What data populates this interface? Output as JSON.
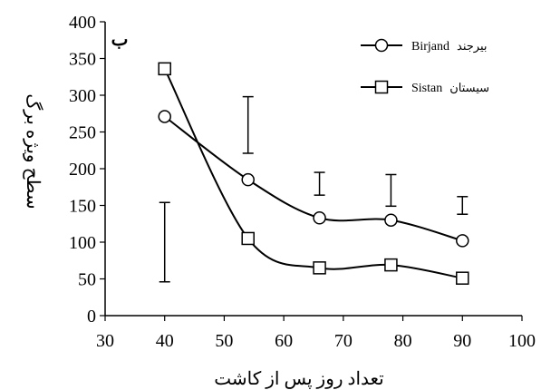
{
  "chart_data": {
    "type": "line",
    "panel_label": "ب",
    "xlabel": "تعداد روز پس از کاشت",
    "ylabel": "سطح ویژه برگ",
    "xlim": [
      30,
      100
    ],
    "ylim": [
      0,
      400
    ],
    "x_ticks": [
      30,
      40,
      50,
      60,
      70,
      80,
      90,
      100
    ],
    "y_ticks": [
      0,
      50,
      100,
      150,
      200,
      250,
      300,
      350,
      400
    ],
    "grid": false,
    "legend_position": "top-right",
    "x": [
      40,
      54,
      66,
      78,
      90
    ],
    "series": [
      {
        "name": "Birjand",
        "name_fa": "بیرجند",
        "marker": "circle",
        "values": [
          271,
          185,
          133,
          130,
          102
        ]
      },
      {
        "name": "Sistan",
        "name_fa": "سیستان",
        "marker": "square",
        "values": [
          336,
          105,
          65,
          69,
          51
        ]
      }
    ],
    "error_bars": [
      {
        "x": 40,
        "low": 46,
        "high": 154
      },
      {
        "x": 54,
        "low": 221,
        "high": 298
      },
      {
        "x": 66,
        "low": 164,
        "high": 195
      },
      {
        "x": 78,
        "low": 149,
        "high": 192
      },
      {
        "x": 90,
        "low": 138,
        "high": 162
      }
    ]
  }
}
